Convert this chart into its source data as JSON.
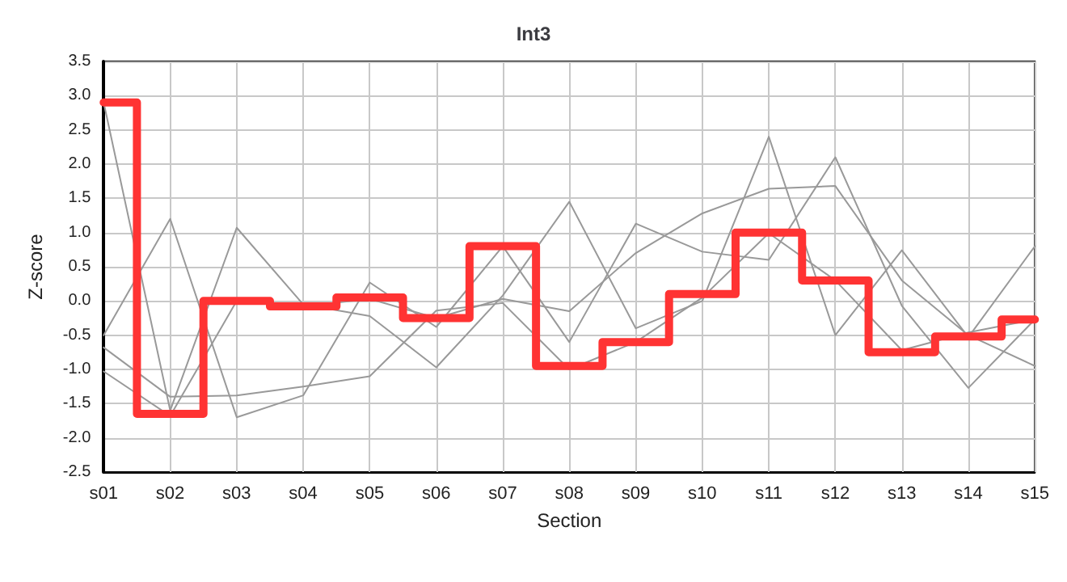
{
  "chart_data": {
    "type": "line",
    "title": "Int3",
    "xlabel": "Section",
    "ylabel": "Z-score",
    "categories": [
      "s01",
      "s02",
      "s03",
      "s04",
      "s05",
      "s06",
      "s07",
      "s08",
      "s09",
      "s10",
      "s11",
      "s12",
      "s13",
      "s14",
      "s15"
    ],
    "ylim": [
      -2.5,
      3.5
    ],
    "yticks": [
      -2.5,
      {
        "value": -2,
        "label": "-2.0"
      },
      -1.5,
      {
        "value": -1,
        "label": "-1.0"
      },
      -0.5,
      {
        "value": 0,
        "label": "0.0"
      },
      0.5,
      {
        "value": 1,
        "label": "1.0"
      },
      1.5,
      {
        "value": 2,
        "label": "2.0"
      },
      2.5,
      {
        "value": 3,
        "label": "3.0"
      },
      3.5
    ],
    "grid": true,
    "marker": "none",
    "line_style": "solid",
    "series": [
      {
        "color": "#999999",
        "values": [
          2.9,
          -1.6,
          1.07,
          -0.05,
          -0.22,
          -0.97,
          0.08,
          1.45,
          -0.4,
          0.0,
          2.4,
          -0.5,
          0.74,
          -0.53,
          0.8
        ]
      },
      {
        "color": "#999999",
        "values": [
          -0.5,
          1.2,
          -1.7,
          -1.38,
          0.27,
          -0.38,
          0.8,
          -0.6,
          1.13,
          0.72,
          0.6,
          2.1,
          -0.07,
          -1.27,
          -0.27
        ]
      },
      {
        "color": "#999999",
        "values": [
          -0.68,
          -1.4,
          -1.38,
          -1.25,
          -1.1,
          -0.14,
          -0.03,
          -1.0,
          -0.6,
          0.05,
          0.99,
          0.3,
          -0.72,
          -0.46,
          -0.27
        ]
      },
      {
        "color": "#999999",
        "values": [
          -1.03,
          -1.68,
          0.0,
          -0.08,
          0.03,
          -0.25,
          0.03,
          -0.15,
          0.7,
          1.28,
          1.64,
          1.68,
          0.3,
          -0.5,
          -0.95
        ]
      },
      {
        "type": "step",
        "color": "#ff3333",
        "values": [
          2.9,
          -1.65,
          0.0,
          -0.08,
          0.05,
          -0.25,
          0.8,
          -0.95,
          -0.6,
          0.1,
          1.0,
          0.3,
          -0.75,
          -0.52,
          -0.27
        ]
      }
    ]
  }
}
